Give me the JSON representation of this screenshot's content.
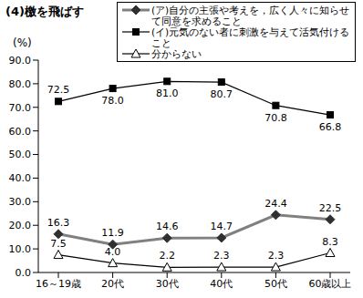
{
  "chart_data": {
    "type": "line",
    "title": "(4)檄を飛ばす",
    "y_label": "(%)",
    "categories": [
      "16～19歳",
      "20代",
      "30代",
      "40代",
      "50代",
      "60歳以上"
    ],
    "series": [
      {
        "name": "(ア)自分の主張や考えを，広く人々に知らせて同意を求めること",
        "color": "#808080",
        "marker": "diamond",
        "line_style": "solid",
        "values": [
          16.3,
          11.9,
          14.6,
          14.7,
          24.4,
          22.5
        ],
        "value_labels": [
          "16.3",
          "11.9",
          "14.6",
          "14.7",
          "24.4",
          "22.5"
        ]
      },
      {
        "name": "(イ)元気のない者に刺激を与えて活気付けること",
        "color": "#000000",
        "marker": "square",
        "line_style": "solid",
        "values": [
          72.5,
          78.0,
          81.0,
          80.7,
          70.8,
          66.8
        ],
        "value_labels": [
          "72.5",
          "78.0",
          "81.0",
          "80.7",
          "70.8",
          "66.8"
        ]
      },
      {
        "name": "分からない",
        "color": "#000000",
        "marker": "triangle",
        "line_style": "solid",
        "values": [
          7.5,
          4.0,
          2.2,
          2.3,
          2.3,
          8.3
        ],
        "value_labels": [
          "7.5",
          "4.0",
          "2.2",
          "2.3",
          "2.3",
          "8.3"
        ]
      }
    ],
    "ylim": [
      0,
      90
    ],
    "yticks": [
      {
        "value": 0,
        "label": "0.0"
      },
      {
        "value": 10,
        "label": "10.0"
      },
      {
        "value": 20,
        "label": "20.0"
      },
      {
        "value": 30,
        "label": "30.0"
      },
      {
        "value": 40,
        "label": "40.0"
      },
      {
        "value": 50,
        "label": "50.0"
      },
      {
        "value": 60,
        "label": "60.0"
      },
      {
        "value": 70,
        "label": "70.0"
      },
      {
        "value": 80,
        "label": "80.0"
      },
      {
        "value": 90,
        "label": "90.0"
      }
    ],
    "grid": false,
    "data_labels": true
  }
}
